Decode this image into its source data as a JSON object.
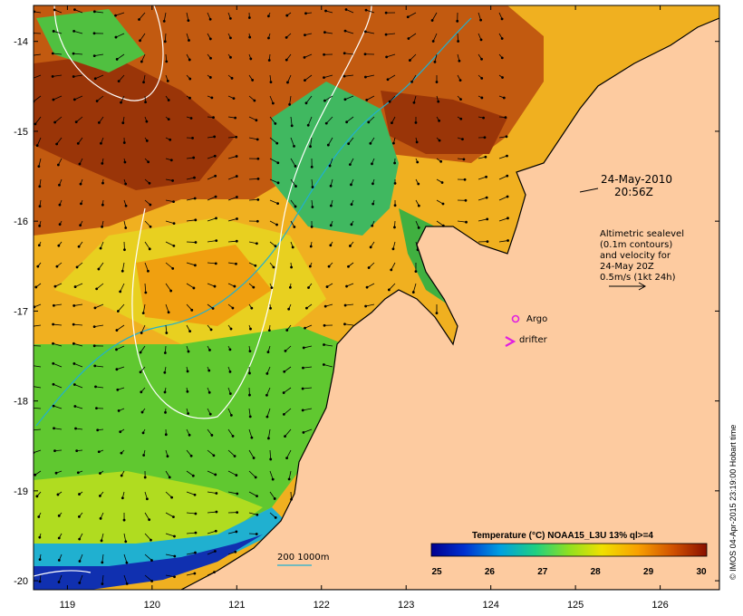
{
  "map": {
    "x_ticks": [
      "119",
      "120",
      "121",
      "122",
      "123",
      "124",
      "125",
      "126"
    ],
    "y_ticks": [
      "-14",
      "-15",
      "-16",
      "-17",
      "-18",
      "-19",
      "-20"
    ],
    "lon_range": [
      118.6,
      126.7
    ],
    "lat_range": [
      -13.6,
      -20.1
    ]
  },
  "annotations": {
    "date": "24-May-2010",
    "time": "20:56Z",
    "altimetry_lines": [
      "Altimetric sealevel",
      "(0.1m contours)",
      "and velocity for",
      "24-May 20Z",
      "0.5m/s (1kt 24h)"
    ],
    "argo_label": "Argo",
    "drifter_label": "drifter",
    "depth_label": "200  1000m"
  },
  "colorbar": {
    "title": "Temperature (°C) NOAA15_L3U 13% ql>=4",
    "ticks": [
      "25",
      "26",
      "27",
      "28",
      "29",
      "30"
    ]
  },
  "credit": "© IMOS 04-Apr-2015 23:19:00 Hobart time",
  "colors": {
    "land": "#fdcba0",
    "argo": "#e020e0",
    "contour_200": "#20b0d0",
    "contour_1000": "#ffffff"
  }
}
